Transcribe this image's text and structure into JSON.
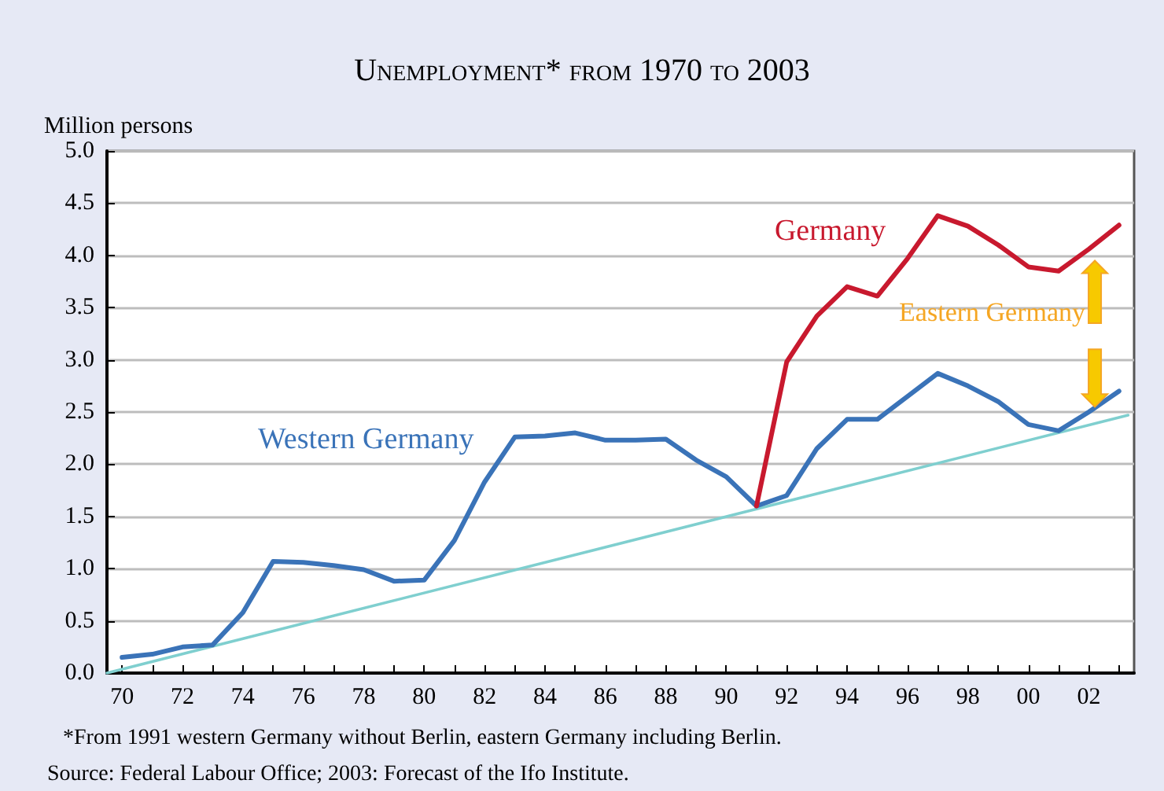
{
  "chart_data": {
    "type": "line",
    "title": "Unemployment* from 1970 to 2003",
    "ylabel": "Million persons",
    "x": [
      1970,
      1971,
      1972,
      1973,
      1974,
      1975,
      1976,
      1977,
      1978,
      1979,
      1980,
      1981,
      1982,
      1983,
      1984,
      1985,
      1986,
      1987,
      1988,
      1989,
      1990,
      1991,
      1992,
      1993,
      1994,
      1995,
      1996,
      1997,
      1998,
      1999,
      2000,
      2001,
      2002,
      2003
    ],
    "series": [
      {
        "name": "Western Germany",
        "color": "#3a73b8",
        "values": [
          0.15,
          0.18,
          0.25,
          0.27,
          0.58,
          1.07,
          1.06,
          1.03,
          0.99,
          0.88,
          0.89,
          1.27,
          1.83,
          2.26,
          2.27,
          2.3,
          2.23,
          2.23,
          2.24,
          2.04,
          1.88,
          1.6,
          1.7,
          2.15,
          2.43,
          2.43,
          2.65,
          2.87,
          2.75,
          2.6,
          2.38,
          2.32,
          2.5,
          2.7
        ]
      },
      {
        "name": "Germany",
        "color": "#c8192e",
        "values": [
          null,
          null,
          null,
          null,
          null,
          null,
          null,
          null,
          null,
          null,
          null,
          null,
          null,
          null,
          null,
          null,
          null,
          null,
          null,
          null,
          null,
          1.6,
          2.98,
          3.42,
          3.7,
          3.61,
          3.97,
          4.38,
          4.28,
          4.1,
          3.89,
          3.85,
          4.06,
          4.29
        ]
      },
      {
        "type": "line",
        "color": "#7fcfcf",
        "x": [
          1969.5,
          2003.3
        ],
        "values": [
          0,
          2.47
        ]
      }
    ],
    "annotations": [
      "Eastern Germany",
      "*From 1991 western Germany without Berlin, eastern Germany including Berlin.",
      "Source: Federal Labour Office; 2003: Forecast of the Ifo Institute."
    ],
    "xlim": [
      1969.5,
      2003.5
    ],
    "xticks": [
      {
        "value": 1970,
        "label": "70"
      },
      {
        "value": 1971,
        "label": null
      },
      {
        "value": 1972,
        "label": "72"
      },
      {
        "value": 1973,
        "label": null
      },
      {
        "value": 1974,
        "label": "74"
      },
      {
        "value": 1975,
        "label": null
      },
      {
        "value": 1976,
        "label": "76"
      },
      {
        "value": 1977,
        "label": null
      },
      {
        "value": 1978,
        "label": "78"
      },
      {
        "value": 1979,
        "label": null
      },
      {
        "value": 1980,
        "label": "80"
      },
      {
        "value": 1981,
        "label": null
      },
      {
        "value": 1982,
        "label": "82"
      },
      {
        "value": 1983,
        "label": null
      },
      {
        "value": 1984,
        "label": "84"
      },
      {
        "value": 1985,
        "label": null
      },
      {
        "value": 1986,
        "label": "86"
      },
      {
        "value": 1987,
        "label": null
      },
      {
        "value": 1988,
        "label": "88"
      },
      {
        "value": 1989,
        "label": null
      },
      {
        "value": 1990,
        "label": "90"
      },
      {
        "value": 1991,
        "label": null
      },
      {
        "value": 1992,
        "label": "92"
      },
      {
        "value": 1993,
        "label": null
      },
      {
        "value": 1994,
        "label": "94"
      },
      {
        "value": 1995,
        "label": null
      },
      {
        "value": 1996,
        "label": "96"
      },
      {
        "value": 1997,
        "label": null
      },
      {
        "value": 1998,
        "label": "98"
      },
      {
        "value": 1999,
        "label": null
      },
      {
        "value": 2000,
        "label": "00"
      },
      {
        "value": 2001,
        "label": null
      },
      {
        "value": 2002,
        "label": "02"
      },
      {
        "value": 2003,
        "label": null
      }
    ],
    "ylim": [
      0,
      5
    ],
    "yticks": [
      {
        "value": 0,
        "label": "0.0"
      },
      {
        "value": 0.5,
        "label": "0.5"
      },
      {
        "value": 1,
        "label": "1.0"
      },
      {
        "value": 1.5,
        "label": "1.5"
      },
      {
        "value": 2,
        "label": "2.0"
      },
      {
        "value": 2.5,
        "label": "2.5"
      },
      {
        "value": 3,
        "label": "3.0"
      },
      {
        "value": 3.5,
        "label": "3.5"
      },
      {
        "value": 4,
        "label": "4.0"
      },
      {
        "value": 4.5,
        "label": "4.5"
      },
      {
        "value": 5,
        "label": "5.0"
      }
    ],
    "grid": "y",
    "marker": "none",
    "line_style": "solid"
  }
}
